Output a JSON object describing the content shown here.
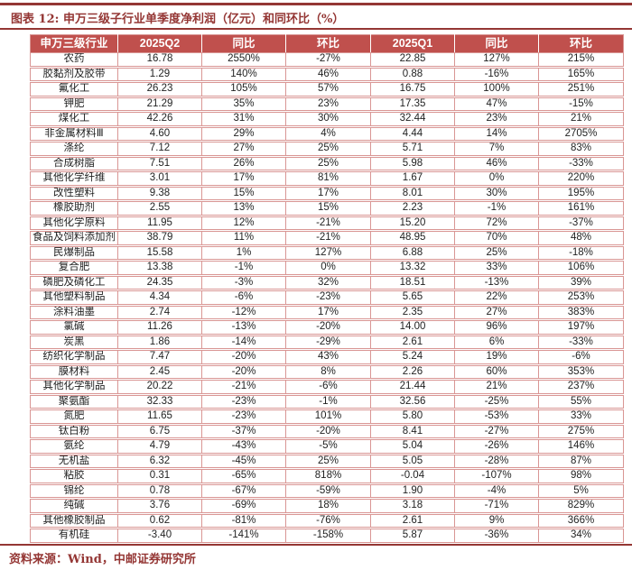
{
  "figure_title": "图表 12: 申万三级子行业单季度净利润（亿元）和同环比（%）",
  "source_note": "资料来源：Wind，中邮证券研究所",
  "colors": {
    "header_bg": "#C0504D",
    "header_text": "#FFFFFF",
    "table_border": "#D99694",
    "accent_rule": "#943634",
    "title_text": "#943634",
    "body_text": "#1F1F1F"
  },
  "chart_data": {
    "type": "table",
    "title": "申万三级子行业单季度净利润（亿元）和同环比（%）",
    "columns": [
      "申万三级行业",
      "2025Q2",
      "同比",
      "环比",
      "2025Q1",
      "同比",
      "环比"
    ],
    "rows": [
      [
        "农药",
        "16.78",
        "2550%",
        "-27%",
        "22.85",
        "127%",
        "215%"
      ],
      [
        "胶黏剂及胶带",
        "1.29",
        "140%",
        "46%",
        "0.88",
        "-16%",
        "165%"
      ],
      [
        "氟化工",
        "26.23",
        "105%",
        "57%",
        "16.75",
        "100%",
        "251%"
      ],
      [
        "钾肥",
        "21.29",
        "35%",
        "23%",
        "17.35",
        "47%",
        "-15%"
      ],
      [
        "煤化工",
        "42.26",
        "31%",
        "30%",
        "32.44",
        "23%",
        "21%"
      ],
      [
        "非金属材料Ⅲ",
        "4.60",
        "29%",
        "4%",
        "4.44",
        "14%",
        "2705%"
      ],
      [
        "涤纶",
        "7.12",
        "27%",
        "25%",
        "5.71",
        "7%",
        "83%"
      ],
      [
        "合成树脂",
        "7.51",
        "26%",
        "25%",
        "5.98",
        "46%",
        "-33%"
      ],
      [
        "其他化学纤维",
        "3.01",
        "17%",
        "81%",
        "1.67",
        "0%",
        "220%"
      ],
      [
        "改性塑料",
        "9.38",
        "15%",
        "17%",
        "8.01",
        "30%",
        "195%"
      ],
      [
        "橡胶助剂",
        "2.55",
        "13%",
        "15%",
        "2.23",
        "-1%",
        "161%"
      ],
      [
        "其他化学原料",
        "11.95",
        "12%",
        "-21%",
        "15.20",
        "72%",
        "-37%"
      ],
      [
        "食品及饲料添加剂",
        "38.79",
        "11%",
        "-21%",
        "48.95",
        "70%",
        "48%"
      ],
      [
        "民爆制品",
        "15.58",
        "1%",
        "127%",
        "6.88",
        "25%",
        "-18%"
      ],
      [
        "复合肥",
        "13.38",
        "-1%",
        "0%",
        "13.32",
        "33%",
        "106%"
      ],
      [
        "磷肥及磷化工",
        "24.35",
        "-3%",
        "32%",
        "18.51",
        "-13%",
        "39%"
      ],
      [
        "其他塑料制品",
        "4.34",
        "-6%",
        "-23%",
        "5.65",
        "22%",
        "253%"
      ],
      [
        "涂料油墨",
        "2.74",
        "-12%",
        "17%",
        "2.35",
        "27%",
        "383%"
      ],
      [
        "氯碱",
        "11.26",
        "-13%",
        "-20%",
        "14.00",
        "96%",
        "197%"
      ],
      [
        "炭黑",
        "1.86",
        "-14%",
        "-29%",
        "2.61",
        "6%",
        "-33%"
      ],
      [
        "纺织化学制品",
        "7.47",
        "-20%",
        "43%",
        "5.24",
        "19%",
        "-6%"
      ],
      [
        "膜材料",
        "2.45",
        "-20%",
        "8%",
        "2.26",
        "60%",
        "353%"
      ],
      [
        "其他化学制品",
        "20.22",
        "-21%",
        "-6%",
        "21.44",
        "21%",
        "237%"
      ],
      [
        "聚氨酯",
        "32.33",
        "-23%",
        "-1%",
        "32.56",
        "-25%",
        "55%"
      ],
      [
        "氮肥",
        "11.65",
        "-23%",
        "101%",
        "5.80",
        "-53%",
        "33%"
      ],
      [
        "钛白粉",
        "6.75",
        "-37%",
        "-20%",
        "8.41",
        "-27%",
        "275%"
      ],
      [
        "氨纶",
        "4.79",
        "-43%",
        "-5%",
        "5.04",
        "-26%",
        "146%"
      ],
      [
        "无机盐",
        "6.32",
        "-45%",
        "25%",
        "5.05",
        "-28%",
        "87%"
      ],
      [
        "粘胶",
        "0.31",
        "-65%",
        "818%",
        "-0.04",
        "-107%",
        "98%"
      ],
      [
        "锦纶",
        "0.78",
        "-67%",
        "-59%",
        "1.90",
        "-4%",
        "5%"
      ],
      [
        "纯碱",
        "3.76",
        "-69%",
        "18%",
        "3.18",
        "-71%",
        "829%"
      ],
      [
        "其他橡胶制品",
        "0.62",
        "-81%",
        "-76%",
        "2.61",
        "9%",
        "366%"
      ],
      [
        "有机硅",
        "-3.40",
        "-141%",
        "-158%",
        "5.87",
        "-36%",
        "34%"
      ]
    ]
  }
}
